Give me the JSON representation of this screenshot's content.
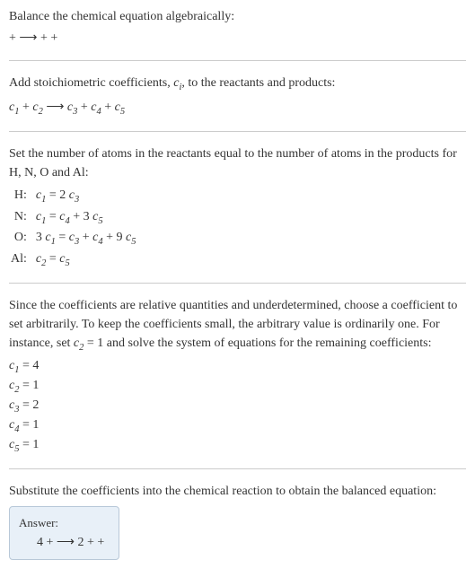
{
  "colors": {
    "text": "#333333",
    "background": "#ffffff",
    "rule": "#cccccc",
    "answer_bg": "#e8f0f8",
    "answer_border": "#b8c8d8"
  },
  "section1": {
    "line1": "Balance the chemical equation algebraically:",
    "eq": " +  ⟶  +  + "
  },
  "section2": {
    "line1_a": "Add stoichiometric coefficients, ",
    "line1_ci": "c",
    "line1_ci_sub": "i",
    "line1_b": ", to the reactants and products:",
    "eq_c1": "c",
    "eq_s1": "1",
    "eq_plus1": "  + ",
    "eq_c2": "c",
    "eq_s2": "2",
    "eq_arrow": "  ⟶ ",
    "eq_c3": "c",
    "eq_s3": "3",
    "eq_plus2": "  + ",
    "eq_c4": "c",
    "eq_s4": "4",
    "eq_plus3": "  + ",
    "eq_c5": "c",
    "eq_s5": "5"
  },
  "section3": {
    "intro": "Set the number of atoms in the reactants equal to the number of atoms in the products for H, N, O and Al:",
    "rows": {
      "H": {
        "label": "H:",
        "c1": "c",
        "s1": "1",
        "eq": " = 2 ",
        "c2": "c",
        "s2": "3"
      },
      "N": {
        "label": "N:",
        "c1": "c",
        "s1": "1",
        "eq": " = ",
        "c2": "c",
        "s2": "4",
        "plus": " + 3 ",
        "c3": "c",
        "s3": "5"
      },
      "O": {
        "label": "O:",
        "pre": "3 ",
        "c1": "c",
        "s1": "1",
        "eq": " = ",
        "c2": "c",
        "s2": "3",
        "plus1": " + ",
        "c3": "c",
        "s3": "4",
        "plus2": " + 9 ",
        "c4": "c",
        "s4": "5"
      },
      "Al": {
        "label": "Al:",
        "c1": "c",
        "s1": "2",
        "eq": " = ",
        "c2": "c",
        "s2": "5"
      }
    }
  },
  "section4": {
    "intro_a": "Since the coefficients are relative quantities and underdetermined, choose a coefficient to set arbitrarily. To keep the coefficients small, the arbitrary value is ordinarily one. For instance, set ",
    "intro_c": "c",
    "intro_s": "2",
    "intro_b": " = 1 and solve the system of equations for the remaining coefficients:",
    "coefs": {
      "l1": {
        "c": "c",
        "s": "1",
        "v": " = 4"
      },
      "l2": {
        "c": "c",
        "s": "2",
        "v": " = 1"
      },
      "l3": {
        "c": "c",
        "s": "3",
        "v": " = 2"
      },
      "l4": {
        "c": "c",
        "s": "4",
        "v": " = 1"
      },
      "l5": {
        "c": "c",
        "s": "5",
        "v": " = 1"
      }
    }
  },
  "section5": {
    "intro": "Substitute the coefficients into the chemical reaction to obtain the balanced equation:",
    "answer_label": "Answer:",
    "answer_eq": "4  +  ⟶ 2  +  + "
  }
}
